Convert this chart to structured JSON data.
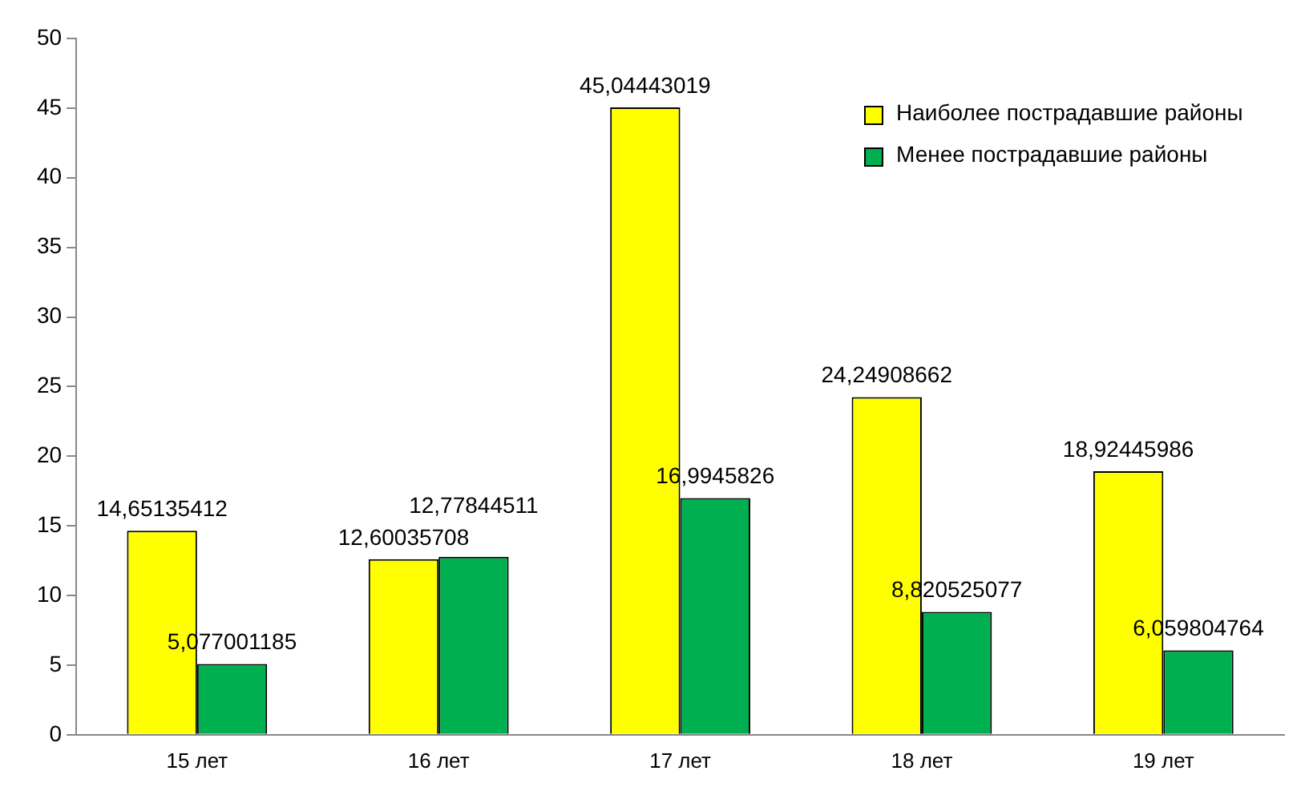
{
  "chart_data": {
    "type": "bar",
    "categories": [
      "15 лет",
      "16 лет",
      "17 лет",
      "18 лет",
      "19 лет"
    ],
    "series": [
      {
        "name": "Наиболее пострадавшие районы",
        "color": "#ffff00",
        "values": [
          14.65135412,
          12.60035708,
          45.04443019,
          24.24908662,
          18.92445986
        ],
        "value_labels": [
          "14,65135412",
          "12,60035708",
          "45,04443019",
          "24,24908662",
          "18,92445986"
        ]
      },
      {
        "name": "Менее пострадавшие районы",
        "color": "#00b050",
        "values": [
          5.077001185,
          12.77844511,
          16.9945826,
          8.820525077,
          6.059804764
        ],
        "value_labels": [
          "5,077001185",
          "12,77844511",
          "16,9945826",
          "8,820525077",
          "6,059804764"
        ]
      }
    ],
    "ylim": [
      0,
      50
    ],
    "yticks": [
      0,
      5,
      10,
      15,
      20,
      25,
      30,
      35,
      40,
      45,
      50
    ],
    "grid": false,
    "legend": "top right"
  }
}
